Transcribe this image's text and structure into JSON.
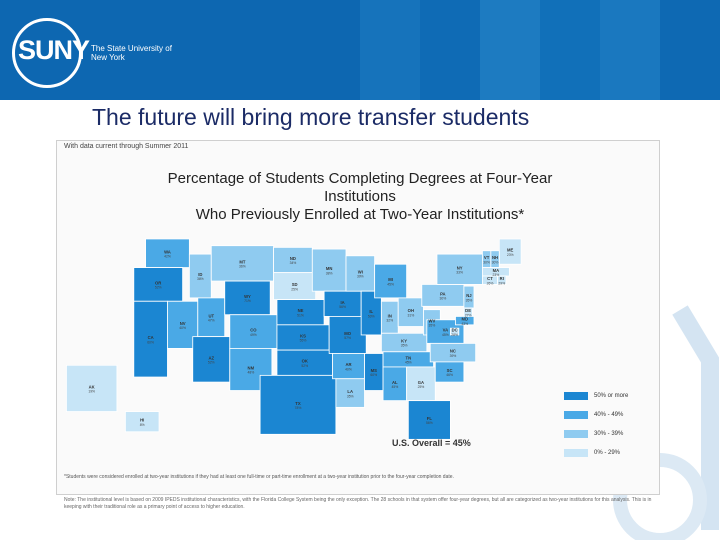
{
  "header": {
    "logo": "SUNY",
    "tagline": "The State University of New York"
  },
  "slide_title": "The future will bring more transfer students",
  "map": {
    "data_note": "With data current through Summer 2011",
    "title_line1": "Percentage of Students Completing Degrees at Four-Year Institutions",
    "title_line2": "Who Previously Enrolled at Two-Year Institutions*",
    "overall": "U.S. Overall = 45%",
    "legend": [
      {
        "label": "50% or more",
        "color": "#1b86d2"
      },
      {
        "label": "40% - 49%",
        "color": "#4aa9e6"
      },
      {
        "label": "30% - 39%",
        "color": "#8fcbf0"
      },
      {
        "label": "0% - 29%",
        "color": "#c7e5f7"
      }
    ],
    "states": [
      {
        "abbr": "WA",
        "value": "42%"
      },
      {
        "abbr": "OR",
        "value": "52%"
      },
      {
        "abbr": "CA",
        "value": "60%"
      },
      {
        "abbr": "ID",
        "value": "38%"
      },
      {
        "abbr": "NV",
        "value": "40%"
      },
      {
        "abbr": "UT",
        "value": "47%"
      },
      {
        "abbr": "AZ",
        "value": "52%"
      },
      {
        "abbr": "MT",
        "value": "36%"
      },
      {
        "abbr": "WY",
        "value": "71%"
      },
      {
        "abbr": "CO",
        "value": "49%"
      },
      {
        "abbr": "NM",
        "value": "48%"
      },
      {
        "abbr": "ND",
        "value": "34%"
      },
      {
        "abbr": "SD",
        "value": "25%"
      },
      {
        "abbr": "NE",
        "value": "51%"
      },
      {
        "abbr": "KS",
        "value": "55%"
      },
      {
        "abbr": "OK",
        "value": "52%"
      },
      {
        "abbr": "TX",
        "value": "78%"
      },
      {
        "abbr": "MN",
        "value": "38%"
      },
      {
        "abbr": "IA",
        "value": "56%"
      },
      {
        "abbr": "MO",
        "value": "57%"
      },
      {
        "abbr": "AR",
        "value": "40%"
      },
      {
        "abbr": "LA",
        "value": "35%"
      },
      {
        "abbr": "WI",
        "value": "39%"
      },
      {
        "abbr": "IL",
        "value": "50%"
      },
      {
        "abbr": "MS",
        "value": "60%"
      },
      {
        "abbr": "MI",
        "value": "45%"
      },
      {
        "abbr": "IN",
        "value": "32%"
      },
      {
        "abbr": "KY",
        "value": "35%"
      },
      {
        "abbr": "TN",
        "value": "45%"
      },
      {
        "abbr": "AL",
        "value": "45%"
      },
      {
        "abbr": "GA",
        "value": "25%"
      },
      {
        "abbr": "FL",
        "value": "56%"
      },
      {
        "abbr": "OH",
        "value": "31%"
      },
      {
        "abbr": "WV",
        "value": "35%"
      },
      {
        "abbr": "VA",
        "value": "45%"
      },
      {
        "abbr": "NC",
        "value": "39%"
      },
      {
        "abbr": "SC",
        "value": "46%"
      },
      {
        "abbr": "PA",
        "value": "30%"
      },
      {
        "abbr": "NY",
        "value": "33%"
      },
      {
        "abbr": "ME",
        "value": "23%"
      },
      {
        "abbr": "VT",
        "value": "30%"
      },
      {
        "abbr": "NH",
        "value": "30%"
      },
      {
        "abbr": "MA",
        "value": "23%"
      },
      {
        "abbr": "CT",
        "value": "26%"
      },
      {
        "abbr": "RI",
        "value": "29%"
      },
      {
        "abbr": "NJ",
        "value": "35%"
      },
      {
        "abbr": "DE",
        "value": "27%"
      },
      {
        "abbr": "MD",
        "value": "43%"
      },
      {
        "abbr": "DC",
        "value": "28%"
      },
      {
        "abbr": "AK",
        "value": "19%"
      },
      {
        "abbr": "HI",
        "value": "8%"
      }
    ],
    "footnote": "*Students were considered enrolled at two-year institutions if they had at least one full-time or part-time enrollment at a two-year institution prior to the four-year completion date.",
    "note": "Note: The institutional level is based on 2009 IPEDS institutional characteristics, with the Florida College System being the only exception. The 28 schools in that system offer four-year degrees, but all are categorized as two-year institutions for this analysis. This is in keeping with their traditional role as a primary point of access to higher education."
  }
}
